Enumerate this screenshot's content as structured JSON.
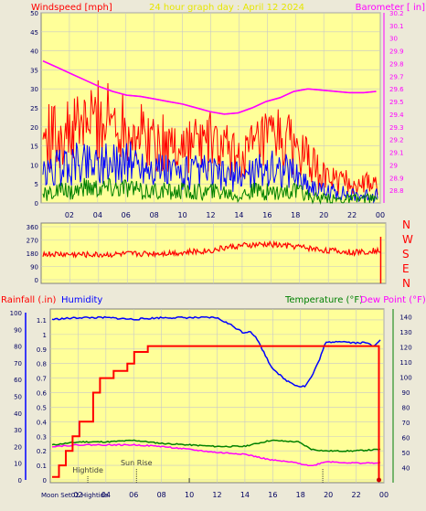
{
  "colors": {
    "background": "#ece9d8",
    "plot_bg": "#ffff99",
    "grid": "#c8c8c8",
    "red": "#ff0000",
    "blue": "#0000ff",
    "green": "#008000",
    "magenta": "#ff00ff",
    "darkred": "#cc0000",
    "title_yellow": "#e6e600"
  },
  "chart_data": [
    {
      "type": "line",
      "title": "24 hour graph day : April 12 2024",
      "left_axis_label": "Windspeed [mph]",
      "right_axis_label": "Barometer [ in]",
      "x_ticks": [
        "02",
        "04",
        "06",
        "08",
        "10",
        "12",
        "14",
        "16",
        "18",
        "20",
        "22",
        "00"
      ],
      "x_range": [
        0,
        24
      ],
      "left_range": [
        0,
        50
      ],
      "left_ticks": [
        "0",
        "5",
        "10",
        "15",
        "20",
        "25",
        "30",
        "35",
        "40",
        "45",
        "50"
      ],
      "right_range": [
        28.7,
        30.2
      ],
      "right_ticks": [
        "28.8",
        "28.9",
        "29",
        "29.1",
        "29.2",
        "29.3",
        "29.4",
        "29.5",
        "29.6",
        "29.7",
        "29.8",
        "29.9",
        "30",
        "30.1",
        "30.2"
      ],
      "series": [
        {
          "axis": "right",
          "color": "#ff00ff",
          "x": [
            0,
            1,
            2,
            3,
            4,
            5,
            6,
            7,
            8,
            9,
            10,
            11,
            12,
            13,
            14,
            15,
            16,
            17,
            18,
            19,
            20,
            21,
            22,
            23,
            23.9
          ],
          "values": [
            29.82,
            29.77,
            29.72,
            29.67,
            29.62,
            29.58,
            29.55,
            29.54,
            29.52,
            29.5,
            29.48,
            29.45,
            29.42,
            29.4,
            29.41,
            29.45,
            29.5,
            29.53,
            29.58,
            29.6,
            29.59,
            29.58,
            29.57,
            29.57,
            29.58
          ]
        },
        {
          "axis": "left",
          "color": "#ff0000",
          "x": [
            0,
            1,
            2,
            3,
            4,
            5,
            6,
            7,
            8,
            9,
            10,
            11,
            12,
            13,
            14,
            15,
            16,
            17,
            18,
            19,
            20,
            21,
            22,
            23,
            24
          ],
          "values": [
            17,
            18,
            18,
            21,
            22,
            22,
            21,
            18,
            16,
            15,
            15,
            16,
            16,
            14,
            12,
            14,
            16,
            17,
            15,
            11,
            7,
            6,
            5,
            5,
            5
          ]
        },
        {
          "axis": "left",
          "color": "#0000ff",
          "x": [
            0,
            1,
            2,
            3,
            4,
            5,
            6,
            7,
            8,
            9,
            10,
            11,
            12,
            13,
            14,
            15,
            16,
            17,
            18,
            19,
            20,
            21,
            22,
            23,
            24
          ],
          "values": [
            7,
            9,
            10,
            11,
            11,
            10,
            11,
            10,
            9,
            8,
            8,
            8,
            8,
            7,
            7,
            8,
            9,
            9,
            8,
            5,
            3,
            3,
            2,
            2,
            2
          ]
        },
        {
          "axis": "left",
          "color": "#008000",
          "x": [
            0,
            1,
            2,
            3,
            4,
            5,
            6,
            7,
            8,
            9,
            10,
            11,
            12,
            13,
            14,
            15,
            16,
            17,
            18,
            19,
            20,
            21,
            22,
            23,
            24
          ],
          "values": [
            2,
            3,
            3,
            4,
            4,
            4,
            4,
            3,
            3,
            3,
            3,
            3,
            3,
            3,
            2,
            3,
            3,
            3,
            3,
            2,
            1,
            1,
            1,
            1,
            1
          ]
        }
      ]
    },
    {
      "type": "line",
      "left_range": [
        0,
        360
      ],
      "left_ticks": [
        "0",
        "90",
        "180",
        "270",
        "360"
      ],
      "compass_labels": [
        "N",
        "W",
        "S",
        "E",
        "N"
      ],
      "series": [
        {
          "color": "#ff0000",
          "x": [
            0,
            2,
            4,
            6,
            8,
            10,
            12,
            13,
            14,
            16,
            18,
            20,
            22,
            23.9
          ],
          "values": [
            175,
            172,
            170,
            175,
            180,
            185,
            200,
            220,
            230,
            240,
            225,
            200,
            185,
            200
          ]
        }
      ]
    },
    {
      "type": "line",
      "rain_label": "Rainfall (.in)",
      "humidity_label": "Humidity",
      "temperature_label": "Temperature (°F)",
      "dewpoint_label": "Dew Point (°F)",
      "rain_range": [
        0,
        1.15
      ],
      "rain_ticks": [
        "0",
        "0.1",
        "0.2",
        "0.3",
        "0.4",
        "0.5",
        "0.6",
        "0.7",
        "0.8",
        "0.9",
        "1",
        "1.1"
      ],
      "humidity_range": [
        0,
        100
      ],
      "humidity_ticks": [
        "0",
        "10",
        "20",
        "30",
        "40",
        "50",
        "60",
        "70",
        "80",
        "90",
        "100"
      ],
      "temp_range": [
        30,
        145
      ],
      "temp_ticks": [
        "40",
        "50",
        "60",
        "70",
        "80",
        "90",
        "100",
        "110",
        "120",
        "130",
        "140"
      ],
      "x_ticks": [
        "02",
        "04",
        "06",
        "08",
        "10",
        "12",
        "14",
        "16",
        "18",
        "20",
        "22",
        "00"
      ],
      "series": [
        {
          "name": "Humidity",
          "color": "#0000ff",
          "x": [
            0,
            2,
            4,
            6,
            8,
            10,
            12,
            13,
            14,
            14.5,
            15,
            16,
            17,
            18,
            18.5,
            19,
            19.5,
            20,
            21,
            22,
            23,
            23.5,
            24
          ],
          "values": [
            96,
            97,
            97,
            96,
            97,
            97,
            97,
            93,
            88,
            89,
            84,
            68,
            60,
            56,
            56,
            62,
            71,
            82,
            83,
            82,
            82,
            80,
            84
          ]
        },
        {
          "name": "Rainfall",
          "color": "#ff0000",
          "x": [
            0,
            0.5,
            1,
            1.5,
            2,
            2.5,
            3,
            3.5,
            4,
            4.5,
            5,
            5.5,
            6,
            7,
            10,
            15,
            20,
            23.8,
            23.9
          ],
          "values": [
            0.02,
            0.1,
            0.2,
            0.3,
            0.4,
            0.4,
            0.6,
            0.7,
            0.7,
            0.75,
            0.75,
            0.8,
            0.88,
            0.92,
            0.92,
            0.92,
            0.92,
            0.92,
            0
          ]
        },
        {
          "name": "Temperature",
          "color": "#008000",
          "x": [
            0,
            2,
            4,
            6,
            8,
            10,
            12,
            14,
            16,
            18,
            19,
            20,
            22,
            24
          ],
          "values": [
            55,
            57,
            57,
            58,
            56,
            55,
            54,
            54,
            58,
            57,
            52,
            51,
            51,
            52
          ]
        },
        {
          "name": "Dew Point",
          "color": "#ff00ff",
          "x": [
            0,
            2,
            4,
            6,
            8,
            10,
            12,
            14,
            16,
            18,
            19,
            20,
            22,
            24
          ],
          "values": [
            54,
            55,
            55,
            55,
            54,
            52,
            50,
            49,
            45,
            43,
            41,
            44,
            43,
            43
          ]
        }
      ],
      "annotations": [
        "Hightide",
        "Sun Rise"
      ],
      "bottom_labels": "Moon Set02 Hightide"
    }
  ]
}
